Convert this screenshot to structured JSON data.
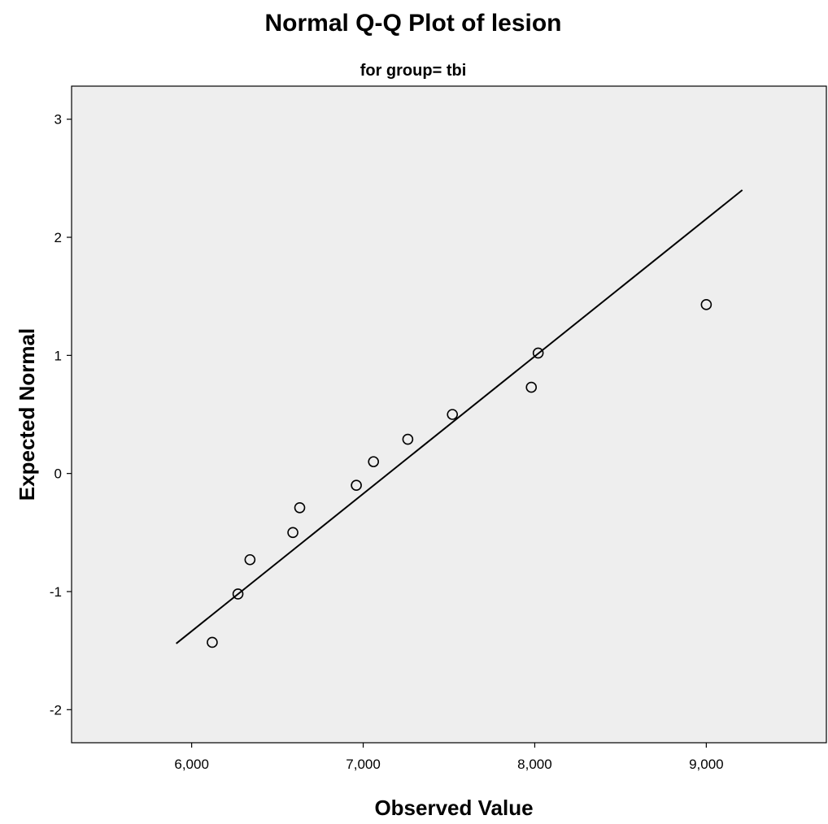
{
  "chart_data": {
    "type": "scatter",
    "title": "Normal Q-Q Plot of lesion",
    "subtitle": "for group= tbi",
    "xlabel": "Observed Value",
    "ylabel": "Expected Normal",
    "xlim": [
      5300,
      9700
    ],
    "ylim": [
      -2.28,
      3.28
    ],
    "x_ticks": [
      6000,
      7000,
      8000,
      9000
    ],
    "x_tick_labels": [
      "6,000",
      "7,000",
      "8,000",
      "9,000"
    ],
    "y_ticks": [
      -2,
      -1,
      0,
      1,
      2,
      3
    ],
    "y_tick_labels": [
      "-2",
      "-1",
      "0",
      "1",
      "2",
      "3"
    ],
    "grid": false,
    "points": [
      {
        "x": 6120,
        "y": -1.43
      },
      {
        "x": 6270,
        "y": -1.02
      },
      {
        "x": 6340,
        "y": -0.73
      },
      {
        "x": 6590,
        "y": -0.5
      },
      {
        "x": 6630,
        "y": -0.29
      },
      {
        "x": 6960,
        "y": -0.1
      },
      {
        "x": 7060,
        "y": 0.1
      },
      {
        "x": 7260,
        "y": 0.29
      },
      {
        "x": 7520,
        "y": 0.5
      },
      {
        "x": 7980,
        "y": 0.73
      },
      {
        "x": 8020,
        "y": 1.02
      },
      {
        "x": 9000,
        "y": 1.43
      }
    ],
    "reference_line": {
      "x": [
        5910,
        9210
      ],
      "y": [
        -1.44,
        2.4
      ]
    },
    "colors": {
      "plot_background": "#eeeeee",
      "marker": "#000000",
      "line": "#000000"
    }
  }
}
